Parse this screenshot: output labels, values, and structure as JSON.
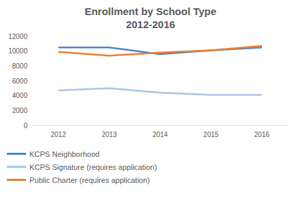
{
  "chart_data": {
    "type": "line",
    "title": "Enrollment by School Type",
    "subtitle": "2012-2016",
    "categories": [
      "2012",
      "2013",
      "2014",
      "2015",
      "2016"
    ],
    "series": [
      {
        "name": "KCPS Neighborhood",
        "color": "#4a86c5",
        "values": [
          10500,
          10500,
          9600,
          10100,
          10500
        ]
      },
      {
        "name": "KCPS Signature (requires application)",
        "color": "#a9c4e4",
        "values": [
          4700,
          5000,
          4400,
          4100,
          4100
        ]
      },
      {
        "name": "Public Charter (requires application)",
        "color": "#ed7d31",
        "values": [
          9900,
          9400,
          9800,
          10100,
          10700
        ]
      }
    ],
    "ylim": [
      0,
      12000
    ],
    "yticks": [
      0,
      2000,
      4000,
      6000,
      8000,
      10000,
      12000
    ],
    "grid": false,
    "legend": "bottom-left"
  }
}
